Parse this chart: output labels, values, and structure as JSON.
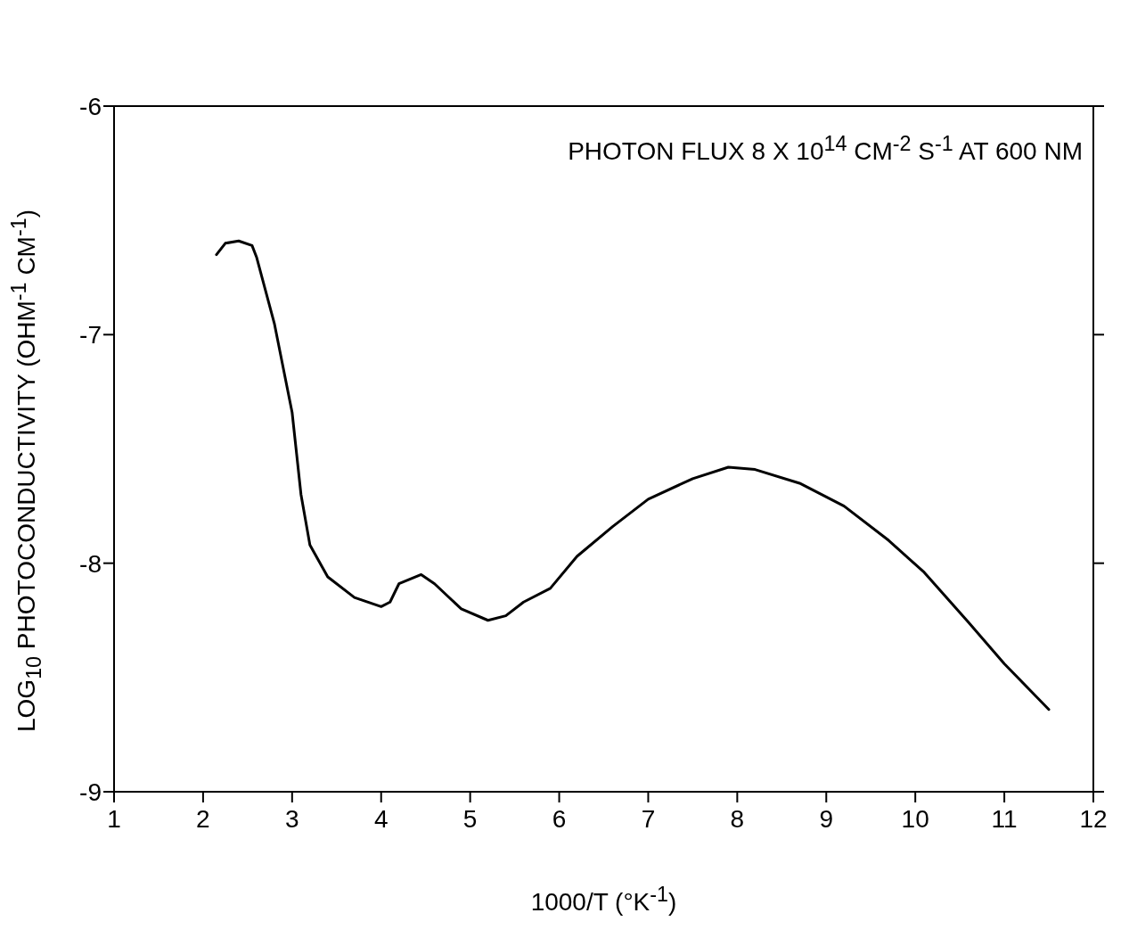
{
  "chart_data": {
    "type": "line",
    "xlabel": "1000/T (°K$^{-1}$)",
    "ylabel": "LOG$_{10}$ PHOTOCONDUCTIVITY (OHM$^{-1}$ CM$^{-1}$)",
    "annotations": [
      "PHOTON FLUX 8 X 10$^{14}$ CM$^{-2}$ S$^{-1}$ AT 600 NM"
    ],
    "xlim": [
      1,
      12
    ],
    "xticks": [
      1,
      2,
      3,
      4,
      5,
      6,
      7,
      8,
      9,
      10,
      11,
      12
    ],
    "ylim": [
      -9,
      -6
    ],
    "yticks": [
      -9,
      -8,
      -7,
      -6
    ],
    "marker": "none",
    "line_style": "solid",
    "series": [
      {
        "color": "#000000",
        "x": [
          2.15,
          2.25,
          2.4,
          2.55,
          2.6,
          2.8,
          3.0,
          3.1,
          3.2,
          3.4,
          3.7,
          4.0,
          4.1,
          4.2,
          4.45,
          4.6,
          4.9,
          5.2,
          5.4,
          5.6,
          5.9,
          6.2,
          6.6,
          7.0,
          7.5,
          7.9,
          8.2,
          8.7,
          9.2,
          9.7,
          10.1,
          10.6,
          11.0,
          11.3,
          11.5
        ],
        "values": [
          -6.65,
          -6.6,
          -6.59,
          -6.61,
          -6.66,
          -6.95,
          -7.34,
          -7.7,
          -7.92,
          -8.06,
          -8.15,
          -8.19,
          -8.17,
          -8.09,
          -8.05,
          -8.09,
          -8.2,
          -8.25,
          -8.23,
          -8.17,
          -8.11,
          -7.97,
          -7.84,
          -7.72,
          -7.63,
          -7.58,
          -7.59,
          -7.65,
          -7.75,
          -7.9,
          -8.04,
          -8.26,
          -8.44,
          -8.56,
          -8.64
        ]
      }
    ]
  }
}
